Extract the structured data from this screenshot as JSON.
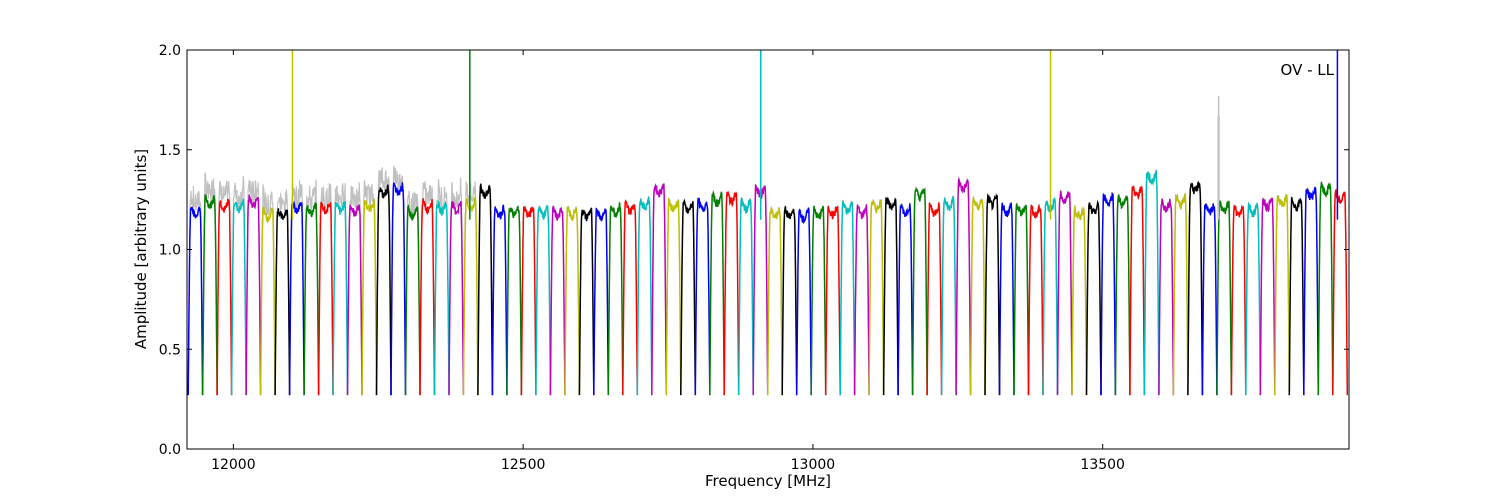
{
  "chart_data": {
    "type": "line",
    "title": "",
    "annotation": "OV - LL",
    "xlabel": "Frequency [MHz]",
    "ylabel": "Amplitude [arbitrary units]",
    "xlim": [
      11920,
      13925
    ],
    "ylim": [
      0.0,
      2.0
    ],
    "x_ticks": [
      12000,
      12500,
      13000,
      13500
    ],
    "y_ticks": [
      0.0,
      0.5,
      1.0,
      1.5,
      2.0
    ],
    "y_tick_labels": [
      "0.0",
      "0.5",
      "1.0",
      "1.5",
      "2.0"
    ],
    "grid": false,
    "legend": "none",
    "series_colors": [
      "#0000ff",
      "#008000",
      "#ff0000",
      "#00bfbf",
      "#bf00bf",
      "#bfbf00",
      "#000000"
    ],
    "background_trace_color": "#c0c0c0",
    "channel_width_mhz": 25,
    "channel_start_mhz": 11922,
    "channel_plateaus": [
      1.19,
      1.24,
      1.22,
      1.22,
      1.24,
      1.18,
      1.18,
      1.21,
      1.2,
      1.21,
      1.21,
      1.2,
      1.22,
      1.29,
      1.3,
      1.18,
      1.22,
      1.21,
      1.21,
      1.22,
      1.29,
      1.19,
      1.19,
      1.19,
      1.19,
      1.18,
      1.18,
      1.18,
      1.18,
      1.2,
      1.21,
      1.23,
      1.3,
      1.22,
      1.21,
      1.22,
      1.25,
      1.26,
      1.22,
      1.29,
      1.18,
      1.18,
      1.17,
      1.18,
      1.19,
      1.21,
      1.19,
      1.22,
      1.23,
      1.2,
      1.28,
      1.2,
      1.23,
      1.32,
      1.23,
      1.24,
      1.2,
      1.2,
      1.19,
      1.22,
      1.26,
      1.18,
      1.2,
      1.25,
      1.24,
      1.29,
      1.36,
      1.22,
      1.24,
      1.31,
      1.2,
      1.21,
      1.19,
      1.2,
      1.23,
      1.24,
      1.23,
      1.28,
      1.3,
      1.26
    ],
    "spikes": [
      {
        "x": 12102,
        "y": 2.0,
        "color": "#bfbf00"
      },
      {
        "x": 12408,
        "y": 2.0,
        "color": "#008000"
      },
      {
        "x": 12910,
        "y": 2.0,
        "color": "#00bfbf"
      },
      {
        "x": 13410,
        "y": 2.0,
        "color": "#bfbf00"
      },
      {
        "x": 13700,
        "y": 1.67,
        "color": "#0000ff"
      },
      {
        "x": 13700,
        "y": 1.77,
        "color": "#c0c0c0"
      },
      {
        "x": 13905,
        "y": 2.0,
        "color": "#0000ff"
      }
    ]
  }
}
